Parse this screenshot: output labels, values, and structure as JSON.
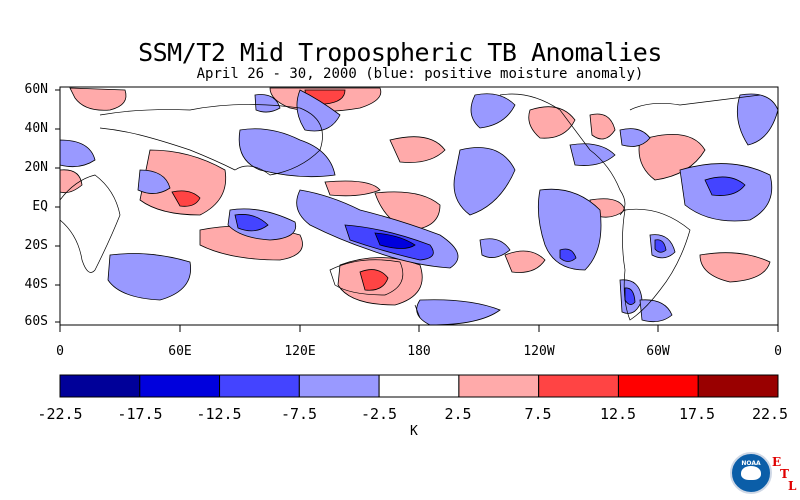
{
  "header": {
    "title": "SSM/T2 Mid Tropospheric TB Anomalies",
    "subtitle": "April 26 - 30, 2000 (blue: positive moisture anomaly)"
  },
  "axes": {
    "lat_labels": [
      "60N",
      "40N",
      "20N",
      "EQ",
      "20S",
      "40S",
      "60S"
    ],
    "lon_labels": [
      "0",
      "60E",
      "120E",
      "180",
      "120W",
      "60W",
      "0"
    ]
  },
  "colorbar": {
    "ticks": [
      "-22.5",
      "-17.5",
      "-12.5",
      "-7.5",
      "-2.5",
      "2.5",
      "7.5",
      "12.5",
      "17.5",
      "22.5"
    ],
    "colors": [
      "#000099",
      "#0000dd",
      "#4444ff",
      "#9999ff",
      "#ffffff",
      "#ffaaaa",
      "#ff4444",
      "#ff0000",
      "#990000"
    ],
    "unit": "K"
  },
  "logo": {
    "agency": "NOAA",
    "lab_letters": [
      "E",
      "T",
      "L"
    ]
  }
}
